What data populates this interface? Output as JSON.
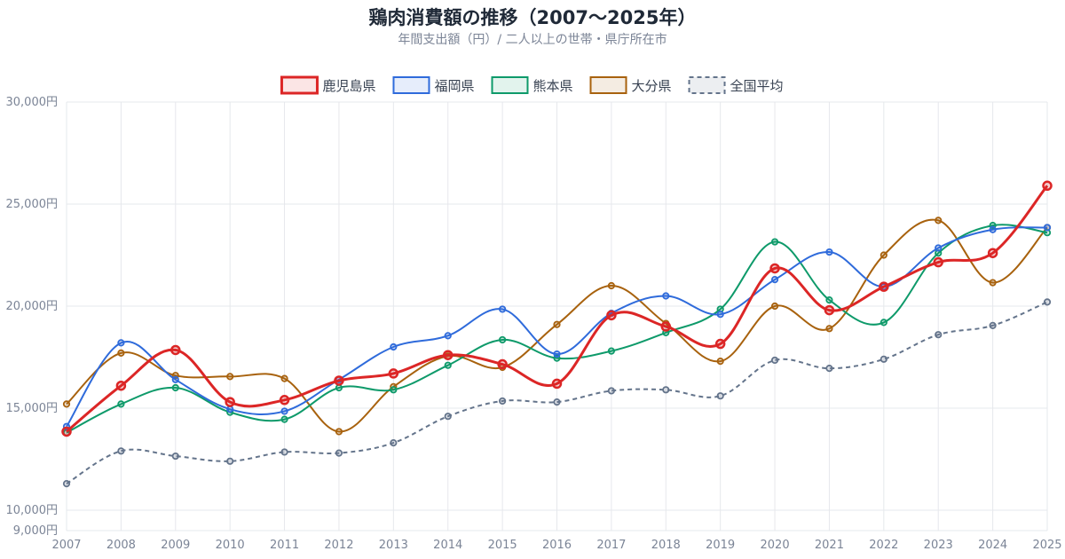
{
  "chart_data": {
    "type": "line",
    "title": "鶏肉消費額の推移（2007〜2025年）",
    "subtitle": "年間支出額（円）/ 二人以上の世帯・県庁所在市",
    "xlabel": "",
    "ylabel": "",
    "x": [
      "2007",
      "2008",
      "2009",
      "2010",
      "2011",
      "2012",
      "2013",
      "2014",
      "2015",
      "2016",
      "2017",
      "2018",
      "2019",
      "2020",
      "2021",
      "2022",
      "2023",
      "2024",
      "2025"
    ],
    "ylim": [
      9000,
      30000
    ],
    "yticks": [
      9000,
      10000,
      15000,
      20000,
      25000,
      30000
    ],
    "ytick_labels": [
      "9,000円",
      "10,000円",
      "15,000円",
      "20,000円",
      "25,000円",
      "30,000円"
    ],
    "grid": true,
    "legend_position": "top",
    "series": [
      {
        "name": "鹿児島県",
        "color": "#dc2626",
        "dashed": false,
        "emphasis": true,
        "values": [
          13850,
          16100,
          17850,
          15300,
          15400,
          16350,
          16700,
          17600,
          17150,
          16200,
          19550,
          19000,
          18150,
          21850,
          19800,
          20950,
          22150,
          22600,
          25900
        ]
      },
      {
        "name": "福岡県",
        "color": "#2f6bdb",
        "dashed": false,
        "emphasis": false,
        "values": [
          14100,
          18200,
          16400,
          14950,
          14850,
          16400,
          18000,
          18550,
          19850,
          17650,
          19650,
          20500,
          19600,
          21300,
          22650,
          20950,
          22850,
          23750,
          23850
        ]
      },
      {
        "name": "熊本県",
        "color": "#0e9a6a",
        "dashed": false,
        "emphasis": false,
        "values": [
          13800,
          15200,
          16000,
          14800,
          14450,
          16000,
          15900,
          17100,
          18350,
          17450,
          17800,
          18700,
          19850,
          23150,
          20300,
          19200,
          22600,
          23950,
          23600
        ]
      },
      {
        "name": "大分県",
        "color": "#a8620e",
        "dashed": false,
        "emphasis": false,
        "values": [
          15200,
          17700,
          16600,
          16550,
          16450,
          13850,
          16050,
          17550,
          17000,
          19100,
          21000,
          19150,
          17300,
          20000,
          18900,
          22500,
          24200,
          21150,
          23850
        ]
      },
      {
        "name": "全国平均",
        "color": "#64748b",
        "dashed": true,
        "emphasis": false,
        "values": [
          11300,
          12900,
          12650,
          12400,
          12850,
          12800,
          13300,
          14600,
          15350,
          15300,
          15850,
          15900,
          15600,
          17350,
          16950,
          17400,
          18600,
          19050,
          20200
        ]
      }
    ]
  }
}
